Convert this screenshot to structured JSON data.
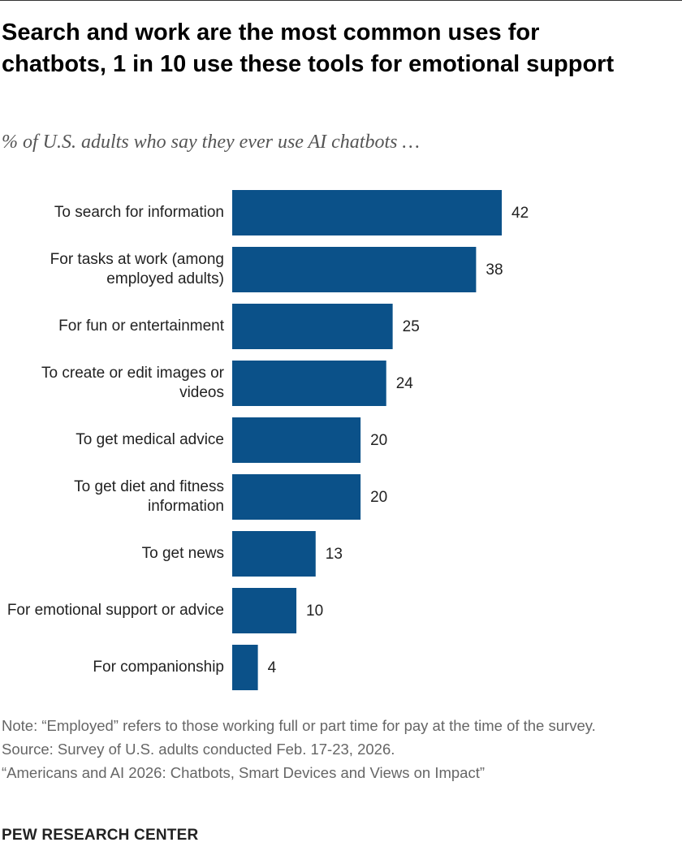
{
  "chart_data": {
    "type": "bar",
    "orientation": "horizontal",
    "title": "Search and work are the most common uses for chatbots, 1 in 10 use these tools for emotional support",
    "subtitle": "% of U.S. adults who say they ever use AI chatbots …",
    "categories": [
      "To search for information",
      "For tasks at work (among employed adults)",
      "For fun or entertainment",
      "To create or edit images or videos",
      "To get medical advice",
      "To get diet and fitness information",
      "To get news",
      "For emotional support or advice",
      "For companionship"
    ],
    "values": [
      42,
      38,
      25,
      24,
      20,
      20,
      13,
      10,
      4
    ],
    "color": "#0b5189",
    "notes": [
      "Note: “Employed” refers to those working full or part time for pay at the time of the survey.",
      "Source: Survey of U.S. adults conducted Feb. 17-23, 2026.",
      "“Americans and AI 2026: Chatbots, Smart Devices and Views on Impact”"
    ],
    "logo": "PEW RESEARCH CENTER"
  }
}
